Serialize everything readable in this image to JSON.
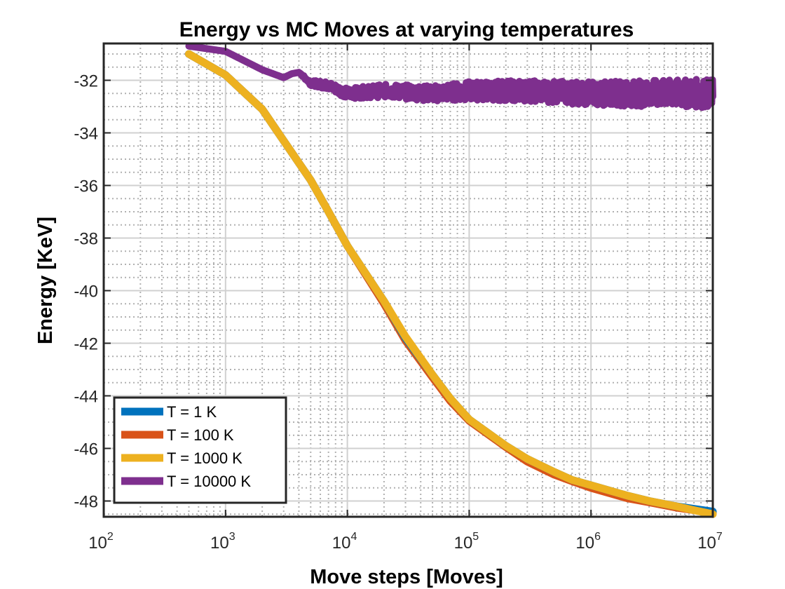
{
  "chart_data": {
    "type": "line",
    "title": "Energy vs MC Moves at varying temperatures",
    "xlabel": "Move steps [Moves]",
    "ylabel": "Energy [KeV]",
    "xscale": "log",
    "xlim": [
      100,
      10000000
    ],
    "ylim": [
      -48.6,
      -30.6
    ],
    "x_tick_base": "10",
    "x_tick_exponents": [
      "2",
      "3",
      "4",
      "5",
      "6",
      "7"
    ],
    "y_ticks": [
      -48,
      -46,
      -44,
      -42,
      -40,
      -38,
      -36,
      -34,
      -32
    ],
    "y_tick_labels": [
      "-48",
      "-46",
      "-44",
      "-42",
      "-40",
      "-38",
      "-36",
      "-34",
      "-32"
    ],
    "grid": true,
    "minor_grid": true,
    "legend_position": "bottom-left",
    "series": [
      {
        "name": "T = 1 K",
        "color": "#0072BD",
        "x": [
          500,
          1000,
          2000,
          3000,
          5000,
          7000,
          10000,
          20000,
          30000,
          50000,
          70000,
          100000,
          200000,
          300000,
          500000,
          700000,
          1000000,
          2000000,
          3000000,
          5000000,
          7000000,
          10000000
        ],
        "y": [
          -31.0,
          -31.8,
          -33.1,
          -34.3,
          -35.8,
          -37.0,
          -38.3,
          -40.4,
          -41.8,
          -43.2,
          -44.1,
          -44.9,
          -45.9,
          -46.4,
          -46.9,
          -47.2,
          -47.4,
          -47.8,
          -48.0,
          -48.2,
          -48.3,
          -48.4
        ]
      },
      {
        "name": "T = 100 K",
        "color": "#D95319",
        "x": [
          500,
          1000,
          2000,
          3000,
          5000,
          7000,
          10000,
          20000,
          30000,
          50000,
          70000,
          100000,
          200000,
          300000,
          500000,
          700000,
          1000000,
          2000000,
          3000000,
          5000000,
          7000000,
          10000000
        ],
        "y": [
          -31.0,
          -31.8,
          -33.1,
          -34.3,
          -35.8,
          -37.0,
          -38.3,
          -40.5,
          -41.9,
          -43.3,
          -44.2,
          -44.95,
          -45.95,
          -46.5,
          -47.0,
          -47.25,
          -47.5,
          -47.9,
          -48.05,
          -48.25,
          -48.35,
          -48.45
        ]
      },
      {
        "name": "T = 1000 K",
        "color": "#EDB120",
        "x": [
          500,
          1000,
          2000,
          3000,
          5000,
          7000,
          10000,
          20000,
          30000,
          50000,
          70000,
          100000,
          200000,
          300000,
          500000,
          700000,
          1000000,
          2000000,
          3000000,
          5000000,
          7000000,
          10000000
        ],
        "y": [
          -31.0,
          -31.8,
          -33.1,
          -34.3,
          -35.8,
          -37.0,
          -38.3,
          -40.4,
          -41.75,
          -43.2,
          -44.1,
          -44.9,
          -45.9,
          -46.4,
          -46.9,
          -47.2,
          -47.4,
          -47.8,
          -48.0,
          -48.2,
          -48.35,
          -48.5
        ]
      },
      {
        "name": "T = 10000 K",
        "color": "#7E2F8E",
        "x": [
          500,
          1000,
          2000,
          3000,
          3500,
          4000,
          5000,
          7000,
          10000,
          20000,
          50000,
          100000,
          300000,
          1000000,
          3000000,
          10000000
        ],
        "y": [
          -30.7,
          -30.9,
          -31.6,
          -31.9,
          -31.75,
          -31.7,
          -32.1,
          -32.2,
          -32.5,
          -32.4,
          -32.5,
          -32.4,
          -32.4,
          -32.5,
          -32.5,
          -32.5
        ],
        "noise_amplitude": [
          0,
          0,
          0,
          0,
          0,
          0,
          0.1,
          0.15,
          0.2,
          0.25,
          0.3,
          0.35,
          0.4,
          0.45,
          0.5,
          0.55
        ]
      }
    ]
  }
}
